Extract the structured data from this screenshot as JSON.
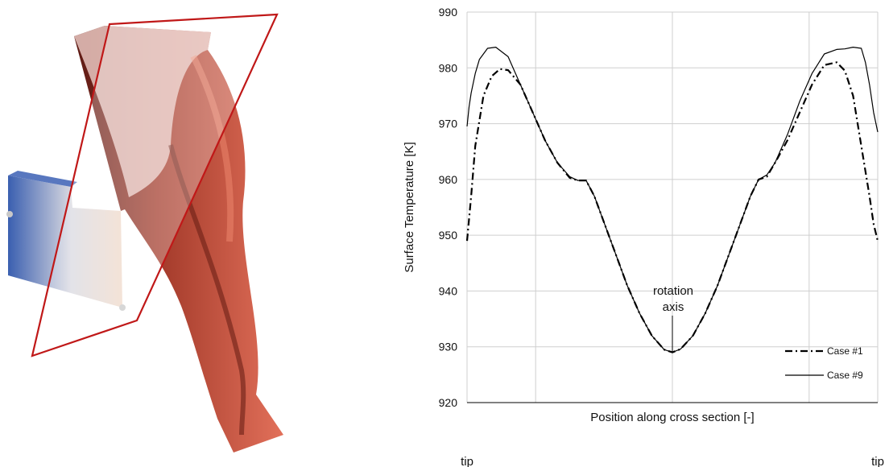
{
  "render": {
    "description_icon": "turbine-blade-3d-render",
    "colors": {
      "blade_dark": "#5c1a14",
      "blade_mid": "#b5402e",
      "blade_light": "#e2705a",
      "root_blue": "#3a5fb0",
      "plane_outline": "#c01818"
    }
  },
  "chart_data": {
    "type": "line",
    "ylabel": "Surface Temperature [K]",
    "xlabel": "Position along cross section [-]",
    "x_tick_labels": [
      "tip",
      "tip"
    ],
    "ylim": [
      920,
      990
    ],
    "xlim": [
      0,
      1
    ],
    "y_ticks": [
      920,
      930,
      940,
      950,
      960,
      970,
      980,
      990
    ],
    "x_gridlines": [
      0,
      0.167,
      0.5,
      0.833,
      1
    ],
    "grid": true,
    "legend_position": "bottom-right",
    "annotation": {
      "text_line1": "rotation",
      "text_line2": "axis",
      "x": 0.5,
      "y": 929
    },
    "series": [
      {
        "name": "Case #1",
        "style": "dash-dot",
        "x": [
          0,
          0.01,
          0.02,
          0.04,
          0.06,
          0.08,
          0.1,
          0.13,
          0.16,
          0.19,
          0.22,
          0.25,
          0.27,
          0.29,
          0.31,
          0.33,
          0.36,
          0.39,
          0.42,
          0.45,
          0.48,
          0.5,
          0.52,
          0.55,
          0.58,
          0.61,
          0.64,
          0.67,
          0.69,
          0.71,
          0.73,
          0.75,
          0.78,
          0.81,
          0.84,
          0.87,
          0.9,
          0.92,
          0.94,
          0.96,
          0.98,
          0.99,
          1.0
        ],
        "y": [
          949,
          957,
          966,
          975,
          978.5,
          979.8,
          979.6,
          977,
          972,
          967,
          963,
          960.3,
          959.8,
          959.8,
          957,
          953,
          947,
          941,
          936,
          932,
          929.5,
          929,
          929.6,
          932,
          936,
          941,
          947,
          953,
          957,
          960,
          960.5,
          963,
          967,
          972,
          977,
          980.5,
          981,
          979.5,
          975,
          966,
          957,
          952,
          949
        ]
      },
      {
        "name": "Case #9",
        "style": "solid",
        "x": [
          0,
          0.005,
          0.01,
          0.02,
          0.03,
          0.05,
          0.07,
          0.1,
          0.13,
          0.16,
          0.19,
          0.22,
          0.25,
          0.27,
          0.29,
          0.31,
          0.33,
          0.36,
          0.39,
          0.42,
          0.45,
          0.48,
          0.5,
          0.52,
          0.55,
          0.58,
          0.61,
          0.64,
          0.67,
          0.69,
          0.71,
          0.73,
          0.75,
          0.78,
          0.81,
          0.84,
          0.87,
          0.9,
          0.92,
          0.94,
          0.96,
          0.97,
          0.98,
          0.99,
          1.0
        ],
        "y": [
          969.5,
          973,
          975.5,
          979,
          981.5,
          983.5,
          983.7,
          982,
          977,
          972,
          967,
          963,
          960.5,
          959.8,
          959.8,
          957,
          953,
          947,
          941,
          936,
          932,
          929.5,
          929,
          929.6,
          932,
          936,
          941,
          947,
          953,
          957,
          960,
          960.8,
          963,
          968,
          974,
          979,
          982.5,
          983.3,
          983.4,
          983.7,
          983.5,
          981,
          977,
          972,
          968.5
        ]
      }
    ]
  }
}
